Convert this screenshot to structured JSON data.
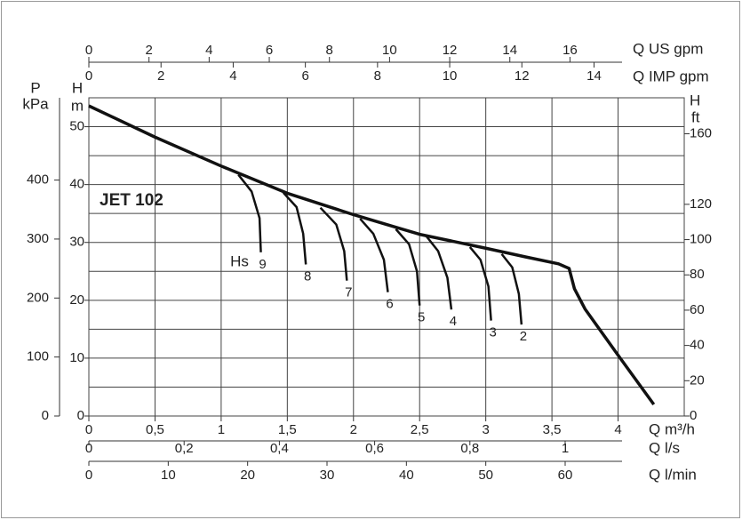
{
  "chart_data": {
    "type": "line",
    "annotation": "JET 102",
    "hs_label": "Hs",
    "xlabel": "Q m³/h",
    "xlim": [
      0,
      4.5
    ],
    "xticks": [
      0,
      {
        "value": 0.5,
        "label": "0,5"
      },
      1,
      {
        "value": 1.5,
        "label": "1,5"
      },
      2,
      {
        "value": 2.5,
        "label": "2,5"
      },
      3,
      {
        "value": 3.5,
        "label": "3,5"
      },
      4
    ],
    "ylabel": "H",
    "yunit": "m",
    "ylim": [
      0,
      55
    ],
    "yticks": [
      0,
      10,
      20,
      30,
      40,
      50
    ],
    "ygrid": [
      5,
      15,
      25,
      35,
      45
    ],
    "grid": true,
    "y2label": "H",
    "y2unit": "ft",
    "y2lim": [
      0,
      180.4
    ],
    "y2ticks": [
      0,
      20,
      40,
      60,
      80,
      100,
      120,
      160
    ],
    "p_axis": {
      "label": "P",
      "unit": "kPa",
      "lim": [
        0,
        539.5
      ],
      "ticks": [
        0,
        100,
        200,
        300,
        400
      ]
    },
    "top_axes": [
      {
        "label": "Q US gpm",
        "lim": [
          0,
          19.8
        ],
        "ticks": [
          0,
          2,
          4,
          6,
          8,
          10,
          12,
          14,
          16
        ]
      },
      {
        "label": "Q IMP gpm",
        "lim": [
          0,
          16.5
        ],
        "ticks": [
          0,
          2,
          4,
          6,
          8,
          10,
          12,
          14
        ]
      }
    ],
    "bottom_axes": [
      {
        "label": "Q l/s",
        "lim": [
          0,
          1.25
        ],
        "ticks": [
          0,
          {
            "value": 0.2,
            "label": "0,2"
          },
          {
            "value": 0.4,
            "label": "0,4"
          },
          {
            "value": 0.6,
            "label": "0,6"
          },
          {
            "value": 0.8,
            "label": "0,8"
          },
          1
        ]
      },
      {
        "label": "Q l/min",
        "lim": [
          0,
          75
        ],
        "ticks": [
          0,
          10,
          20,
          30,
          40,
          50,
          60
        ]
      }
    ],
    "curve": {
      "color": "#111111",
      "x": [
        0,
        0.5,
        1,
        1.5,
        2,
        2.5,
        3,
        3.3,
        3.55,
        3.63,
        3.67,
        3.75,
        4,
        4.27
      ],
      "y": [
        53.6,
        48.2,
        43.2,
        38.5,
        34.8,
        31.4,
        29,
        27.5,
        26.3,
        25.5,
        22,
        18.5,
        10.5,
        2
      ]
    },
    "series": [
      {
        "name": "9",
        "color": "#111111",
        "x": [
          1.13,
          1.23,
          1.29,
          1.3
        ],
        "values": [
          41.7,
          38.8,
          34.2,
          28.3
        ]
      },
      {
        "name": "8",
        "color": "#111111",
        "x": [
          1.47,
          1.57,
          1.62,
          1.64
        ],
        "values": [
          38.6,
          36.1,
          31.5,
          26.2
        ]
      },
      {
        "name": "7",
        "color": "#111111",
        "x": [
          1.75,
          1.87,
          1.93,
          1.95
        ],
        "values": [
          36,
          33.1,
          28.5,
          23.4
        ]
      },
      {
        "name": "6",
        "color": "#111111",
        "x": [
          2.05,
          2.15,
          2.23,
          2.26
        ],
        "values": [
          34.1,
          31.5,
          27,
          21.4
        ]
      },
      {
        "name": "5",
        "color": "#111111",
        "x": [
          2.32,
          2.42,
          2.48,
          2.5
        ],
        "values": [
          32.3,
          29.7,
          25,
          19.1
        ]
      },
      {
        "name": "4",
        "color": "#111111",
        "x": [
          2.55,
          2.64,
          2.71,
          2.74
        ],
        "values": [
          31.1,
          28.5,
          23.9,
          18.4
        ]
      },
      {
        "name": "3",
        "color": "#111111",
        "x": [
          2.88,
          2.96,
          3.02,
          3.04
        ],
        "values": [
          29.2,
          27,
          22.4,
          16.5
        ]
      },
      {
        "name": "2",
        "color": "#111111",
        "x": [
          3.12,
          3.2,
          3.25,
          3.27
        ],
        "values": [
          28,
          25.7,
          21.1,
          15.8
        ]
      }
    ]
  }
}
